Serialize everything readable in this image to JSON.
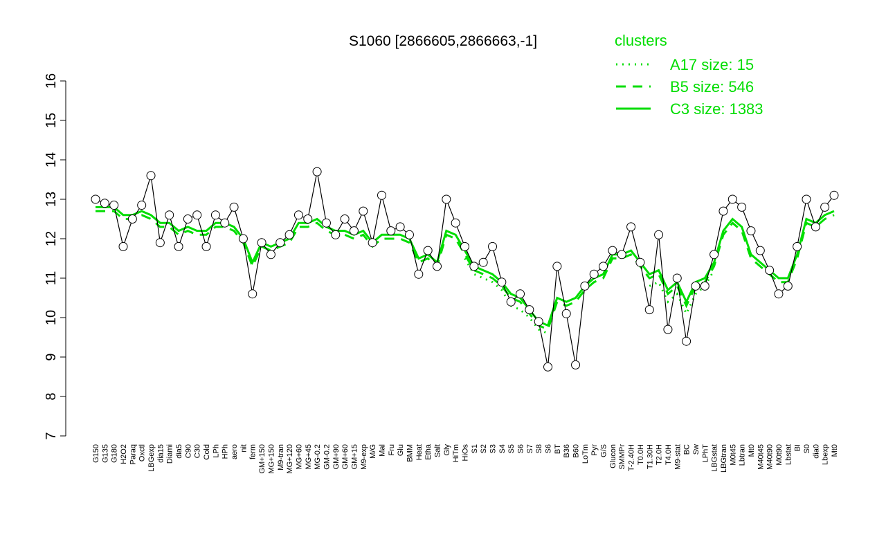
{
  "chart_data": {
    "type": "line",
    "title": "S1060 [2866605,2866663,-1]",
    "legend_title": "clusters",
    "ylim": [
      7,
      16
    ],
    "yticks": [
      7,
      8,
      9,
      10,
      11,
      12,
      13,
      14,
      15,
      16
    ],
    "categories": [
      "G150",
      "G135",
      "G180",
      "H2O2",
      "Paraq",
      "Oxctl",
      "LBGexp",
      "dia15",
      "Diami",
      "dia5",
      "C90",
      "C30",
      "Cold",
      "LPh",
      "HPh",
      "aero",
      "nit",
      "ferm",
      "GM+150",
      "MG+150",
      "M9-tran",
      "MG+120",
      "MG+60",
      "MG+45",
      "MG-0.2",
      "GM-0.2",
      "GM+90",
      "GM+60",
      "GM+15",
      "M9-exp",
      "M/G",
      "Mal",
      "Fru",
      "Glu",
      "BMM",
      "Heat",
      "Etha",
      "Salt",
      "Gly",
      "HiTm",
      "HiOs",
      "S1",
      "S2",
      "S3",
      "S4",
      "S5",
      "S6",
      "S7",
      "S8",
      "S6",
      "BT",
      "B36",
      "B60",
      "LoTm",
      "Pyr",
      "G/S",
      "Glucon",
      "SMMPr",
      "T-2.40H",
      "T0.0H",
      "T1.30H",
      "T2.0H",
      "T4.0H",
      "M9-stat",
      "BC",
      "Sw",
      "LPhT",
      "LBGstat",
      "LBGtran",
      "M0t45",
      "Lbtran",
      "Mt0",
      "M40t45",
      "M40t90",
      "M0t90",
      "Lbstat",
      "BI",
      "S0",
      "dia0",
      "Lbexp",
      "Mt0"
    ],
    "values": [
      13.0,
      12.9,
      12.85,
      11.8,
      12.5,
      12.85,
      13.6,
      11.9,
      12.6,
      11.8,
      12.5,
      12.6,
      11.8,
      12.6,
      12.4,
      12.8,
      12.0,
      10.6,
      11.9,
      11.6,
      11.9,
      12.1,
      12.6,
      12.5,
      13.7,
      12.4,
      12.1,
      12.5,
      12.2,
      12.7,
      11.9,
      13.1,
      12.2,
      12.3,
      12.1,
      11.1,
      11.7,
      11.3,
      13.0,
      12.4,
      11.8,
      11.3,
      11.4,
      11.8,
      10.9,
      10.4,
      10.6,
      10.2,
      9.9,
      8.75,
      11.3,
      10.1,
      8.8,
      10.8,
      11.1,
      11.3,
      11.7,
      11.6,
      12.3,
      11.4,
      10.2,
      12.1,
      9.7,
      11.0,
      9.4,
      10.8,
      10.8,
      11.6,
      12.7,
      13.0,
      12.8,
      12.2,
      11.7,
      11.2,
      10.6,
      10.8,
      11.8,
      13.0,
      12.3,
      12.8,
      13.1
    ],
    "series": [
      {
        "name": "A17 size: 15",
        "color": "#00dd00",
        "dash": "dotted",
        "values": [
          null,
          null,
          null,
          null,
          null,
          null,
          null,
          null,
          null,
          null,
          null,
          null,
          null,
          null,
          null,
          null,
          null,
          null,
          null,
          null,
          null,
          null,
          null,
          null,
          null,
          null,
          null,
          null,
          null,
          null,
          null,
          null,
          null,
          null,
          null,
          null,
          null,
          null,
          null,
          null,
          11.5,
          11.1,
          11.0,
          10.9,
          10.7,
          10.3,
          10.2,
          10.0,
          9.7,
          9.6,
          null,
          null,
          null,
          null,
          null,
          null,
          null,
          null,
          null,
          null,
          10.8,
          10.9,
          10.4,
          10.6,
          10.1,
          10.6,
          10.8,
          11.2,
          null,
          null,
          null,
          null,
          null,
          null,
          null,
          null,
          null,
          null,
          null,
          null,
          null
        ]
      },
      {
        "name": "B5 size: 546",
        "color": "#00dd00",
        "dash": "dashed",
        "values": [
          12.7,
          12.7,
          12.7,
          12.5,
          12.5,
          12.6,
          12.5,
          12.3,
          12.3,
          12.1,
          12.2,
          12.1,
          12.1,
          12.3,
          12.3,
          12.2,
          11.9,
          11.3,
          11.8,
          11.7,
          11.8,
          11.9,
          12.3,
          12.3,
          12.4,
          12.2,
          12.1,
          12.1,
          12.0,
          12.1,
          11.8,
          12.0,
          12.0,
          12.0,
          11.9,
          11.4,
          11.5,
          11.3,
          12.1,
          12.0,
          11.6,
          11.2,
          11.1,
          11.0,
          10.8,
          10.5,
          10.4,
          10.1,
          9.8,
          9.7,
          10.4,
          10.3,
          10.4,
          10.7,
          10.9,
          11.0,
          11.5,
          11.5,
          11.6,
          11.3,
          11.0,
          11.1,
          10.6,
          10.8,
          10.3,
          10.8,
          10.9,
          11.3,
          12.1,
          12.4,
          12.2,
          11.5,
          11.3,
          11.1,
          10.9,
          10.9,
          11.5,
          12.4,
          12.3,
          12.5,
          12.6
        ]
      },
      {
        "name": "C3 size: 1383",
        "color": "#00dd00",
        "dash": "solid",
        "values": [
          12.8,
          12.8,
          12.8,
          12.6,
          12.6,
          12.7,
          12.6,
          12.4,
          12.4,
          12.2,
          12.3,
          12.2,
          12.2,
          12.4,
          12.4,
          12.3,
          12.0,
          11.4,
          11.9,
          11.8,
          11.9,
          12.0,
          12.4,
          12.4,
          12.5,
          12.3,
          12.2,
          12.2,
          12.1,
          12.2,
          11.9,
          12.1,
          12.1,
          12.1,
          12.0,
          11.5,
          11.6,
          11.4,
          12.2,
          12.1,
          11.7,
          11.3,
          11.2,
          11.1,
          10.9,
          10.6,
          10.5,
          10.2,
          9.9,
          9.8,
          10.5,
          10.4,
          10.5,
          10.8,
          11.0,
          11.1,
          11.6,
          11.6,
          11.7,
          11.4,
          11.1,
          11.2,
          10.7,
          10.9,
          10.4,
          10.9,
          11.0,
          11.4,
          12.2,
          12.5,
          12.3,
          11.6,
          11.4,
          11.2,
          11.0,
          11.0,
          11.6,
          12.5,
          12.4,
          12.6,
          12.7
        ]
      }
    ]
  }
}
